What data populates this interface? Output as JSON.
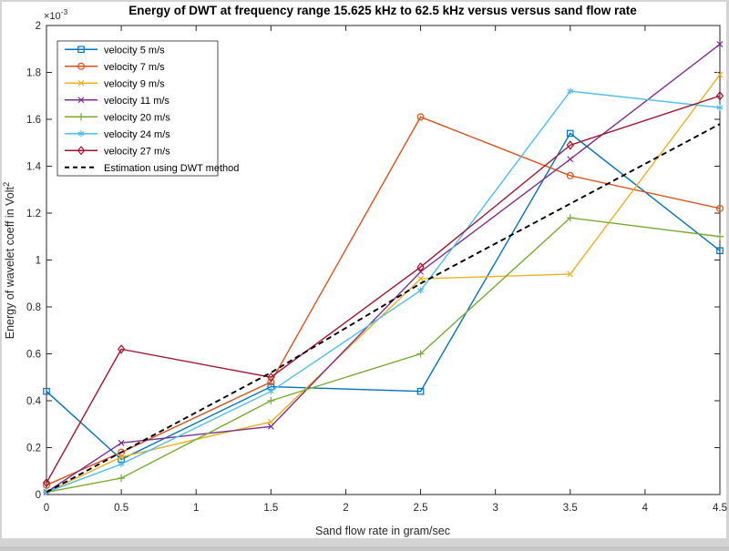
{
  "figure": {
    "title": "Energy of DWT at frequency range 15.625 kHz to 62.5 kHz versus versus sand flow rate",
    "xlabel": "Sand flow rate in gram/sec",
    "ylabel": "Energy of wavelet coeff in Volt",
    "ylabel_exp": "2",
    "y_mult_base": "×10",
    "y_mult_exp": "-3",
    "axis_color": "#262626",
    "background": "#ffffff",
    "frame_color": "#d4d4d4"
  },
  "chart_data": {
    "type": "line",
    "x": [
      0,
      0.5,
      1.5,
      2.5,
      3.5,
      4.5
    ],
    "xlim": [
      0,
      4.5
    ],
    "ylim": [
      0,
      2
    ],
    "x_ticks": [
      "0",
      "0.5",
      "1",
      "1.5",
      "2",
      "2.5",
      "3",
      "3.5",
      "4",
      "4.5"
    ],
    "y_ticks": [
      "0",
      "0.2",
      "0.4",
      "0.6",
      "0.8",
      "1",
      "1.2",
      "1.4",
      "1.6",
      "1.8",
      "2"
    ],
    "y_units_note": "values are in multiples of 1e-3 Volt^2",
    "grid": false,
    "legend_position": "top-left",
    "series": [
      {
        "name": "velocity 5 m/s",
        "color": "#0072BD",
        "marker": "square",
        "dash": "solid",
        "values": [
          0.44,
          0.15,
          0.46,
          0.44,
          1.54,
          1.04
        ]
      },
      {
        "name": "velocity 7 m/s",
        "color": "#D95319",
        "marker": "circle",
        "dash": "solid",
        "values": [
          0.04,
          0.18,
          0.48,
          1.61,
          1.36,
          1.22
        ]
      },
      {
        "name": "velocity 9 m/s",
        "color": "#EDB120",
        "marker": "x",
        "dash": "solid",
        "values": [
          0.01,
          0.16,
          0.31,
          0.92,
          0.94,
          1.79
        ]
      },
      {
        "name": "velocity 11 m/s",
        "color": "#7E2F8E",
        "marker": "x",
        "dash": "solid",
        "values": [
          0.01,
          0.22,
          0.29,
          0.95,
          1.43,
          1.92
        ]
      },
      {
        "name": "velocity 20 m/s",
        "color": "#77AC30",
        "marker": "plus",
        "dash": "solid",
        "values": [
          0.01,
          0.07,
          0.4,
          0.6,
          1.18,
          1.1
        ]
      },
      {
        "name": "velocity 24 m/s",
        "color": "#4DBEEE",
        "marker": "star",
        "dash": "solid",
        "values": [
          0.01,
          0.13,
          0.44,
          0.87,
          1.72,
          1.65
        ]
      },
      {
        "name": "velocity 27 m/s",
        "color": "#A2142F",
        "marker": "diamond",
        "dash": "solid",
        "values": [
          0.05,
          0.62,
          0.5,
          0.97,
          1.49,
          1.7
        ]
      },
      {
        "name": "Estimation using DWT method",
        "color": "#000000",
        "marker": "none",
        "dash": "dashed",
        "values": [
          0.01,
          0.18,
          0.52,
          0.9,
          1.24,
          1.58
        ]
      }
    ]
  }
}
